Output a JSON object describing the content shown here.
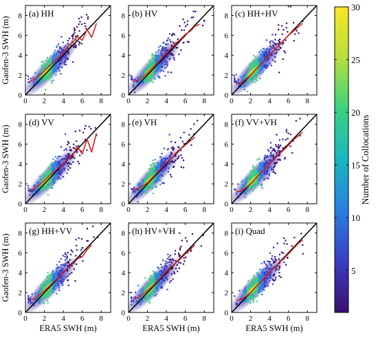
{
  "figure": {
    "colorbar": {
      "label": "Number of Collocations",
      "ticks": [
        5,
        10,
        15,
        20,
        25,
        30
      ],
      "range": [
        1,
        30
      ],
      "colors": [
        "#3b0f70",
        "#3a3dc4",
        "#2a7fe0",
        "#19b6c2",
        "#3bd27f",
        "#b6de3a",
        "#f9e725"
      ]
    },
    "fit_line_color": "#d62020",
    "point_cloud_low_color": "#2b1a8a"
  },
  "chart_data": [
    {
      "type": "scatter",
      "panel": "(a) HH",
      "xlabel": "",
      "ylabel": "Gaofen-3 SWH (m)",
      "xlim": [
        0,
        9
      ],
      "ylim": [
        0,
        9
      ],
      "xticks": [
        0,
        2,
        4,
        6,
        8
      ],
      "yticks": [
        0,
        2,
        4,
        6,
        8
      ],
      "show_xtick_labels": true,
      "show_ytick_labels": true,
      "reference_line": "y = x",
      "density_trend": {
        "x": [
          0.5,
          1.0,
          1.5,
          2.0,
          2.5,
          3.0,
          3.5,
          4.0,
          4.5,
          5.0,
          5.5,
          6.0,
          6.5,
          7.0,
          7.5
        ],
        "y": [
          1.4,
          1.6,
          2.0,
          2.4,
          2.9,
          3.3,
          3.8,
          4.3,
          4.9,
          5.3,
          5.9,
          5.5,
          6.6,
          5.8,
          7.2
        ]
      }
    },
    {
      "type": "scatter",
      "panel": "(b) HV",
      "xlabel": "",
      "ylabel": "",
      "xlim": [
        0,
        9
      ],
      "ylim": [
        0,
        9
      ],
      "xticks": [
        0,
        2,
        4,
        6,
        8
      ],
      "yticks": [
        0,
        2,
        4,
        6,
        8
      ],
      "show_xtick_labels": true,
      "show_ytick_labels": true,
      "reference_line": "y = x",
      "density_trend": {
        "x": [
          0.5,
          1.0,
          1.5,
          2.0,
          2.5,
          3.0,
          3.5,
          4.0,
          4.5,
          5.0,
          5.5,
          6.0,
          6.5,
          7.0,
          7.5
        ],
        "y": [
          1.4,
          1.5,
          1.8,
          2.2,
          2.7,
          3.2,
          3.7,
          4.2,
          4.7,
          5.2,
          5.6,
          6.1,
          6.4,
          6.9,
          7.1
        ]
      }
    },
    {
      "type": "scatter",
      "panel": "(c) HH+HV",
      "xlabel": "",
      "ylabel": "",
      "xlim": [
        0,
        9
      ],
      "ylim": [
        0,
        9
      ],
      "xticks": [
        0,
        2,
        4,
        6,
        8
      ],
      "yticks": [
        0,
        2,
        4,
        6,
        8
      ],
      "show_xtick_labels": true,
      "show_ytick_labels": true,
      "reference_line": "y = x",
      "density_trend": {
        "x": [
          0.5,
          1.0,
          1.5,
          2.0,
          2.5,
          3.0,
          3.5,
          4.0,
          4.5,
          5.0,
          5.5,
          6.0,
          6.5,
          7.0,
          7.5
        ],
        "y": [
          1.1,
          1.2,
          1.6,
          2.0,
          2.5,
          3.0,
          3.5,
          4.0,
          4.5,
          5.0,
          5.5,
          6.0,
          6.4,
          6.8,
          7.2
        ]
      }
    },
    {
      "type": "scatter",
      "panel": "(d) VV",
      "xlabel": "",
      "ylabel": "Gaofen-3 SWH (m)",
      "xlim": [
        0,
        9
      ],
      "ylim": [
        0,
        9
      ],
      "xticks": [
        0,
        2,
        4,
        6,
        8
      ],
      "yticks": [
        0,
        2,
        4,
        6,
        8
      ],
      "show_xtick_labels": true,
      "show_ytick_labels": true,
      "reference_line": "y = x",
      "density_trend": {
        "x": [
          0.5,
          1.0,
          1.5,
          2.0,
          2.5,
          3.0,
          3.5,
          4.0,
          4.5,
          5.0,
          5.5,
          6.0,
          6.5,
          7.0,
          7.5
        ],
        "y": [
          1.3,
          1.6,
          1.9,
          2.3,
          2.8,
          3.2,
          3.6,
          4.0,
          4.6,
          4.9,
          5.7,
          5.0,
          6.5,
          5.2,
          7.1
        ]
      }
    },
    {
      "type": "scatter",
      "panel": "(e) VH",
      "xlabel": "",
      "ylabel": "",
      "xlim": [
        0,
        9
      ],
      "ylim": [
        0,
        9
      ],
      "xticks": [
        0,
        2,
        4,
        6,
        8
      ],
      "yticks": [
        0,
        2,
        4,
        6,
        8
      ],
      "show_xtick_labels": true,
      "show_ytick_labels": true,
      "reference_line": "y = x",
      "density_trend": {
        "x": [
          0.5,
          1.0,
          1.5,
          2.0,
          2.5,
          3.0,
          3.5,
          4.0,
          4.5,
          5.0,
          5.5,
          6.0,
          6.5,
          7.0
        ],
        "y": [
          1.4,
          1.5,
          1.8,
          2.1,
          2.6,
          3.1,
          3.6,
          4.1,
          4.5,
          5.1,
          5.5,
          5.9,
          6.3,
          6.7
        ]
      }
    },
    {
      "type": "scatter",
      "panel": "(f) VV+VH",
      "xlabel": "",
      "ylabel": "",
      "xlim": [
        0,
        9
      ],
      "ylim": [
        0,
        9
      ],
      "xticks": [
        0,
        2,
        4,
        6,
        8
      ],
      "yticks": [
        0,
        2,
        4,
        6,
        8
      ],
      "show_xtick_labels": true,
      "show_ytick_labels": true,
      "reference_line": "y = x",
      "density_trend": {
        "x": [
          0.5,
          1.0,
          1.5,
          2.0,
          2.5,
          3.0,
          3.5,
          4.0,
          4.5,
          5.0,
          5.5,
          6.0,
          6.5,
          7.0,
          7.5
        ],
        "y": [
          1.2,
          1.3,
          1.6,
          2.0,
          2.5,
          3.0,
          3.5,
          4.0,
          4.5,
          5.0,
          5.4,
          5.9,
          6.4,
          6.8,
          7.2
        ]
      }
    },
    {
      "type": "scatter",
      "panel": "(g) HH+VV",
      "xlabel": "ERA5 SWH (m)",
      "ylabel": "Gaofen-3 SWH (m)",
      "xlim": [
        0,
        9
      ],
      "ylim": [
        0,
        9
      ],
      "xticks": [
        0,
        2,
        4,
        6,
        8
      ],
      "yticks": [
        0,
        2,
        4,
        6,
        8
      ],
      "show_xtick_labels": true,
      "show_ytick_labels": true,
      "reference_line": "y = x",
      "density_trend": {
        "x": [
          0.5,
          1.0,
          1.5,
          2.0,
          2.5,
          3.0,
          3.5,
          4.0,
          4.5,
          5.0,
          5.5,
          6.0,
          6.5,
          7.0
        ],
        "y": [
          1.3,
          1.4,
          1.8,
          2.2,
          2.6,
          3.1,
          3.5,
          4.0,
          4.5,
          4.9,
          5.4,
          5.6,
          6.3,
          6.8
        ]
      }
    },
    {
      "type": "scatter",
      "panel": "(h) HV+VH",
      "xlabel": "ERA5 SWH (m)",
      "ylabel": "",
      "xlim": [
        0,
        9
      ],
      "ylim": [
        0,
        9
      ],
      "xticks": [
        0,
        2,
        4,
        6,
        8
      ],
      "yticks": [
        0,
        2,
        4,
        6,
        8
      ],
      "show_xtick_labels": true,
      "show_ytick_labels": true,
      "reference_line": "y = x",
      "density_trend": {
        "x": [
          0.5,
          1.0,
          1.5,
          2.0,
          2.5,
          3.0,
          3.5,
          4.0,
          4.5,
          5.0,
          5.5,
          6.0,
          6.5,
          7.0
        ],
        "y": [
          1.4,
          1.5,
          1.8,
          2.2,
          2.6,
          3.1,
          3.6,
          4.1,
          4.6,
          5.0,
          5.4,
          5.9,
          6.3,
          6.8
        ]
      }
    },
    {
      "type": "scatter",
      "panel": "(i) Quad",
      "xlabel": "ERA5 SWH (m)",
      "ylabel": "",
      "xlim": [
        0,
        9
      ],
      "ylim": [
        0,
        9
      ],
      "xticks": [
        0,
        2,
        4,
        6,
        8
      ],
      "yticks": [
        0,
        2,
        4,
        6,
        8
      ],
      "show_xtick_labels": true,
      "show_ytick_labels": true,
      "reference_line": "y = x",
      "density_trend": {
        "x": [
          0.5,
          1.0,
          1.5,
          2.0,
          2.5,
          3.0,
          3.5,
          4.0,
          4.5,
          5.0,
          5.5,
          6.0,
          6.5,
          7.0,
          7.5
        ],
        "y": [
          1.2,
          1.3,
          1.6,
          2.0,
          2.5,
          3.0,
          3.5,
          4.0,
          4.5,
          5.0,
          5.4,
          5.9,
          6.4,
          6.9,
          7.3
        ]
      }
    }
  ]
}
